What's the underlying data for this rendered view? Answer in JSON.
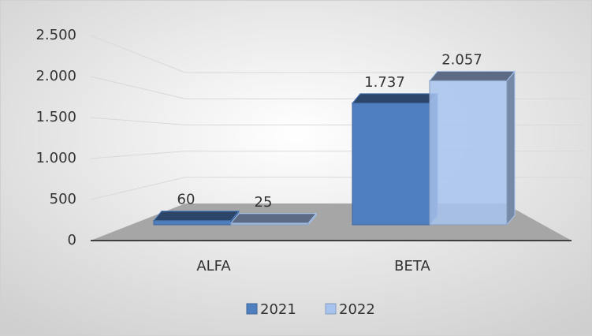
{
  "chart_data": {
    "type": "bar3d",
    "categories": [
      "ALFA",
      "BETA"
    ],
    "series": [
      {
        "name": "2021",
        "color": "#4f7fbf",
        "values": [
          60,
          1737
        ],
        "value_labels": [
          "60",
          "1.737"
        ]
      },
      {
        "name": "2022",
        "color": "#a8c3ee",
        "values": [
          25,
          2057
        ],
        "value_labels": [
          "25",
          "2.057"
        ]
      }
    ],
    "ylim": [
      0,
      2500
    ],
    "yticks": [
      0,
      500,
      {
        "value": 1000,
        "label": "1.000"
      },
      {
        "value": 1500,
        "label": "1.500"
      },
      {
        "value": 2000,
        "label": "2.000"
      },
      {
        "value": 2500,
        "label": "2.500"
      }
    ],
    "grid": true,
    "legend": "bottom"
  }
}
